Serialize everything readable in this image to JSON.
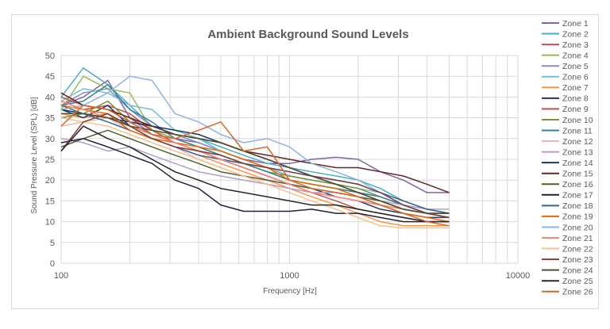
{
  "chart_data": {
    "type": "line",
    "title": "Ambient Background Sound Levels",
    "xlabel": "Frequency [Hz]",
    "ylabel": "Sound Pressure Level (SPL) [dB]",
    "x_scale": "log",
    "xlim": [
      100,
      10000
    ],
    "ylim": [
      0,
      50
    ],
    "x_tick_labels": [
      "100",
      "1000",
      "10000"
    ],
    "y_ticks": [
      0,
      5,
      10,
      15,
      20,
      25,
      30,
      35,
      40,
      45,
      50
    ],
    "grid": true,
    "legend_position": "right",
    "x": [
      100,
      125,
      160,
      200,
      250,
      315,
      400,
      500,
      630,
      800,
      1000,
      1250,
      1600,
      2000,
      2500,
      3150,
      4000,
      5000
    ],
    "series": [
      {
        "name": "Zone 1",
        "color": "#8064a2",
        "values": [
          38,
          40,
          44,
          35,
          31,
          30,
          29,
          27,
          25,
          24,
          24,
          25,
          25.5,
          25,
          22,
          20,
          17,
          17
        ]
      },
      {
        "name": "Zone 2",
        "color": "#4bacc6",
        "values": [
          40,
          47,
          43,
          38,
          33,
          31,
          30,
          28,
          26,
          24,
          23,
          22,
          21,
          20,
          18,
          15,
          13,
          12
        ]
      },
      {
        "name": "Zone 3",
        "color": "#c0504d",
        "values": [
          39,
          37,
          38,
          36,
          32,
          30,
          28,
          26,
          24,
          22,
          20,
          19,
          18,
          17,
          16,
          14,
          12,
          11
        ]
      },
      {
        "name": "Zone 4",
        "color": "#9bbb59",
        "values": [
          37,
          45,
          42,
          41,
          32,
          30,
          28,
          26,
          24,
          22,
          20,
          19,
          18,
          16,
          15,
          13,
          12,
          11
        ]
      },
      {
        "name": "Zone 5",
        "color": "#8e8ac8",
        "values": [
          38,
          41,
          42,
          37,
          33,
          31,
          29,
          27,
          25,
          23,
          21,
          20,
          19,
          17,
          15,
          13,
          12,
          12
        ]
      },
      {
        "name": "Zone 6",
        "color": "#6fc0cf",
        "values": [
          39,
          42,
          41,
          38,
          37,
          32,
          30,
          27,
          25,
          23,
          21,
          20,
          19,
          18,
          17,
          14,
          13,
          12
        ]
      },
      {
        "name": "Zone 7",
        "color": "#f79646",
        "values": [
          36,
          35,
          36,
          33,
          30,
          28,
          26,
          24,
          22,
          20,
          18,
          16,
          14,
          12,
          10,
          9,
          9,
          9
        ]
      },
      {
        "name": "Zone 8",
        "color": "#1f3864",
        "values": [
          37,
          35,
          38,
          33,
          31,
          29,
          27,
          25,
          23,
          21,
          19,
          18,
          16,
          15,
          13,
          12,
          11,
          11
        ]
      },
      {
        "name": "Zone 9",
        "color": "#c0504d",
        "values": [
          40,
          38,
          37,
          35,
          32,
          29,
          27,
          25,
          23,
          21,
          19,
          17,
          15,
          13,
          12,
          11,
          10,
          10
        ]
      },
      {
        "name": "Zone 10",
        "color": "#77933c",
        "values": [
          35,
          36,
          39,
          34,
          31,
          29,
          27,
          26,
          24,
          22,
          21,
          20,
          19,
          18,
          16,
          14,
          12,
          11
        ]
      },
      {
        "name": "Zone 11",
        "color": "#31849b",
        "values": [
          38,
          39,
          43,
          37,
          34,
          30,
          28,
          26,
          24,
          22,
          20,
          19,
          18,
          17,
          16,
          14,
          12,
          11
        ]
      },
      {
        "name": "Zone 12",
        "color": "#e6b9b8",
        "values": [
          33,
          34,
          35,
          32,
          30,
          28,
          25,
          23,
          21,
          19,
          18,
          17,
          16,
          15,
          14,
          13,
          12,
          11
        ]
      },
      {
        "name": "Zone 13",
        "color": "#b1a0c7",
        "values": [
          30,
          29,
          27,
          28,
          26,
          24,
          22,
          21,
          20,
          19,
          18,
          17,
          17,
          16,
          15,
          14,
          13,
          13
        ]
      },
      {
        "name": "Zone 14",
        "color": "#17375e",
        "values": [
          37,
          36,
          35,
          34,
          33,
          32,
          31,
          29,
          27,
          25,
          23,
          21,
          19,
          17,
          15,
          13,
          12,
          12
        ]
      },
      {
        "name": "Zone 15",
        "color": "#632523",
        "values": [
          41,
          38,
          37,
          35,
          33,
          31,
          30,
          29,
          27,
          26,
          25,
          24,
          23,
          23,
          22,
          21,
          19,
          17
        ]
      },
      {
        "name": "Zone 16",
        "color": "#4f6228",
        "values": [
          28,
          30,
          32,
          30,
          28,
          26,
          24,
          22,
          21,
          20,
          19,
          18,
          17,
          16,
          15,
          13,
          12,
          11
        ]
      },
      {
        "name": "Zone 17",
        "color": "#1f1f3f",
        "values": [
          29,
          30,
          28,
          26,
          24,
          20,
          18,
          14,
          12.5,
          12.5,
          12.5,
          13,
          12,
          12,
          11,
          10,
          10,
          10
        ]
      },
      {
        "name": "Zone 18",
        "color": "#366092",
        "values": [
          38,
          36,
          34,
          32,
          30,
          28,
          26,
          25,
          24,
          23,
          22,
          21,
          20,
          19,
          17,
          15,
          13,
          12
        ]
      },
      {
        "name": "Zone 19",
        "color": "#e46c0a",
        "values": [
          38,
          37,
          36,
          32,
          30,
          29,
          28,
          27,
          25,
          23,
          20,
          19,
          18,
          16,
          14,
          12,
          11,
          10
        ]
      },
      {
        "name": "Zone 20",
        "color": "#8db3e2",
        "values": [
          37,
          38,
          41,
          45,
          44,
          36,
          34,
          31,
          29,
          30,
          28,
          24,
          22,
          20,
          17,
          14,
          12,
          11
        ]
      },
      {
        "name": "Zone 21",
        "color": "#f2877c",
        "values": [
          39,
          37,
          35,
          33,
          31,
          29,
          27,
          25,
          23,
          21,
          19,
          17,
          16,
          15,
          14,
          13,
          12,
          11
        ]
      },
      {
        "name": "Zone 22",
        "color": "#fac08f",
        "values": [
          35,
          34,
          33,
          31,
          29,
          27,
          25,
          23,
          21,
          19,
          17,
          15,
          13,
          11,
          9,
          8.5,
          8.5,
          8.5
        ]
      },
      {
        "name": "Zone 23",
        "color": "#7f3f3f",
        "values": [
          27,
          34,
          36,
          33,
          30,
          28,
          27,
          26,
          24,
          23,
          22,
          21,
          20,
          19,
          17,
          14,
          12,
          11
        ]
      },
      {
        "name": "Zone 24",
        "color": "#4f4f2f",
        "values": [
          36,
          36,
          35,
          33,
          32,
          31,
          30,
          29,
          27,
          25,
          23,
          21,
          19,
          17,
          15,
          13,
          12,
          12
        ]
      },
      {
        "name": "Zone 25",
        "color": "#262626",
        "values": [
          27,
          33,
          30,
          28,
          25,
          22,
          20,
          18,
          17,
          16,
          15,
          14,
          14,
          13,
          12,
          11,
          10,
          10
        ]
      },
      {
        "name": "Zone 26",
        "color": "#d4692b",
        "values": [
          33,
          38,
          37,
          34,
          31,
          30,
          32,
          34,
          27,
          28,
          20,
          18,
          17,
          16,
          14,
          12,
          10,
          9
        ]
      }
    ]
  }
}
